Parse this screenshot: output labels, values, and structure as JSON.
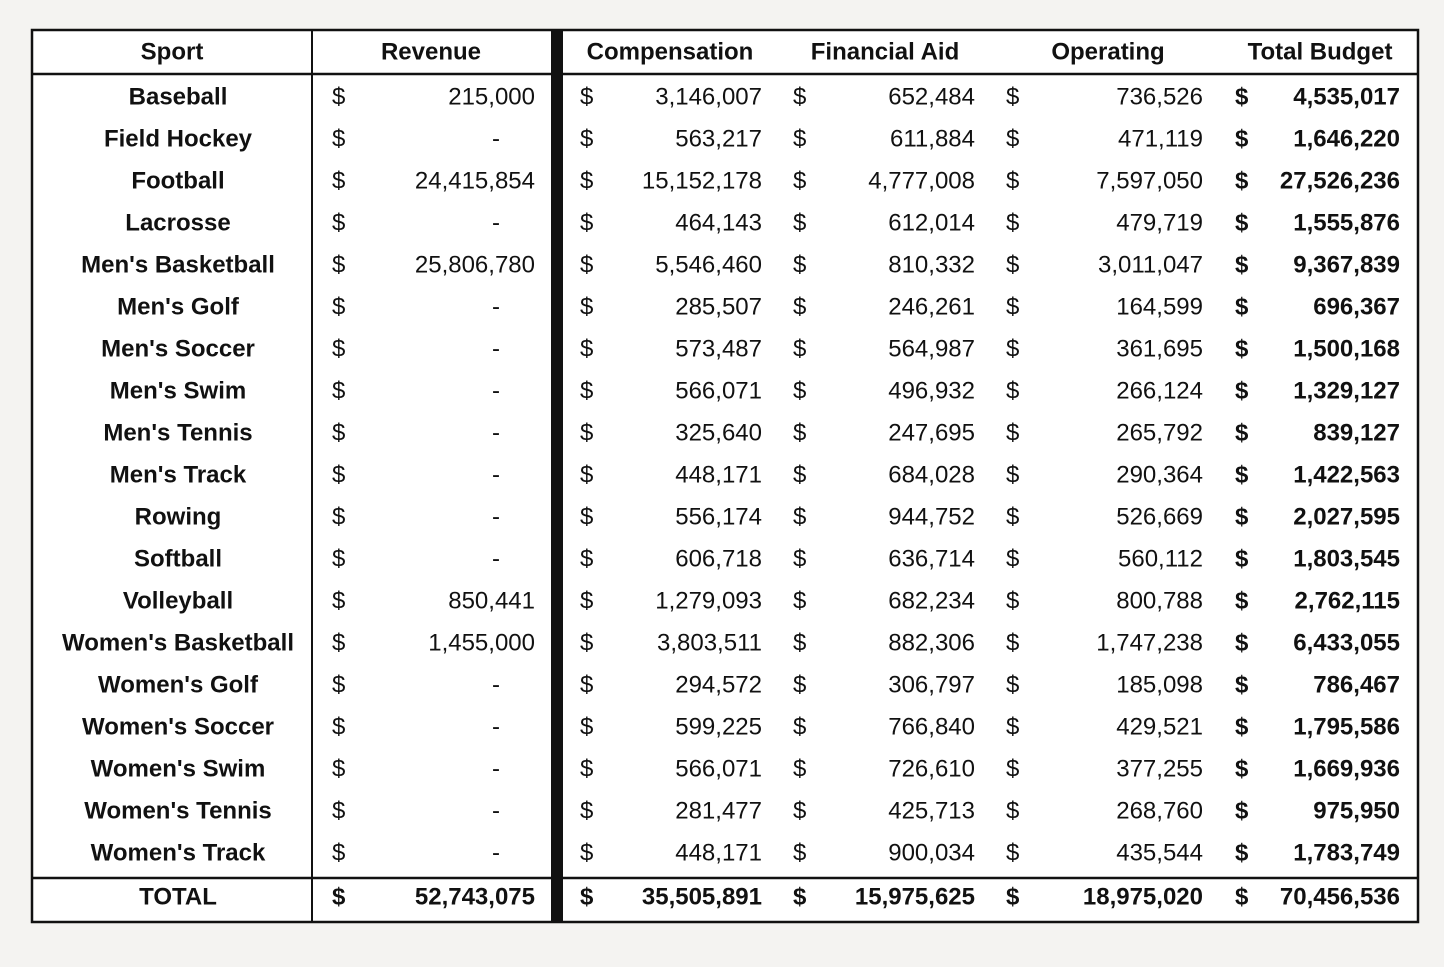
{
  "table": {
    "currency": "$",
    "header": [
      "Sport",
      "Revenue",
      "Compensation",
      "Financial Aid",
      "Operating",
      "Total Budget"
    ],
    "rows": [
      [
        "Baseball",
        "215,000",
        "3,146,007",
        "652,484",
        "736,526",
        "4,535,017"
      ],
      [
        "Field Hockey",
        "-",
        "563,217",
        "611,884",
        "471,119",
        "1,646,220"
      ],
      [
        "Football",
        "24,415,854",
        "15,152,178",
        "4,777,008",
        "7,597,050",
        "27,526,236"
      ],
      [
        "Lacrosse",
        "-",
        "464,143",
        "612,014",
        "479,719",
        "1,555,876"
      ],
      [
        "Men's Basketball",
        "25,806,780",
        "5,546,460",
        "810,332",
        "3,011,047",
        "9,367,839"
      ],
      [
        "Men's Golf",
        "-",
        "285,507",
        "246,261",
        "164,599",
        "696,367"
      ],
      [
        "Men's Soccer",
        "-",
        "573,487",
        "564,987",
        "361,695",
        "1,500,168"
      ],
      [
        "Men's Swim",
        "-",
        "566,071",
        "496,932",
        "266,124",
        "1,329,127"
      ],
      [
        "Men's Tennis",
        "-",
        "325,640",
        "247,695",
        "265,792",
        "839,127"
      ],
      [
        "Men's Track",
        "-",
        "448,171",
        "684,028",
        "290,364",
        "1,422,563"
      ],
      [
        "Rowing",
        "-",
        "556,174",
        "944,752",
        "526,669",
        "2,027,595"
      ],
      [
        "Softball",
        "-",
        "606,718",
        "636,714",
        "560,112",
        "1,803,545"
      ],
      [
        "Volleyball",
        "850,441",
        "1,279,093",
        "682,234",
        "800,788",
        "2,762,115"
      ],
      [
        "Women's Basketball",
        "1,455,000",
        "3,803,511",
        "882,306",
        "1,747,238",
        "6,433,055"
      ],
      [
        "Women's Golf",
        "-",
        "294,572",
        "306,797",
        "185,098",
        "786,467"
      ],
      [
        "Women's Soccer",
        "-",
        "599,225",
        "766,840",
        "429,521",
        "1,795,586"
      ],
      [
        "Women's Swim",
        "-",
        "566,071",
        "726,610",
        "377,255",
        "1,669,936"
      ],
      [
        "Women's Tennis",
        "-",
        "281,477",
        "425,713",
        "268,760",
        "975,950"
      ],
      [
        "Women's Track",
        "-",
        "448,171",
        "900,034",
        "435,544",
        "1,783,749"
      ]
    ],
    "total": [
      "TOTAL",
      "52,743,075",
      "35,505,891",
      "15,975,625",
      "18,975,020",
      "70,456,536"
    ]
  }
}
